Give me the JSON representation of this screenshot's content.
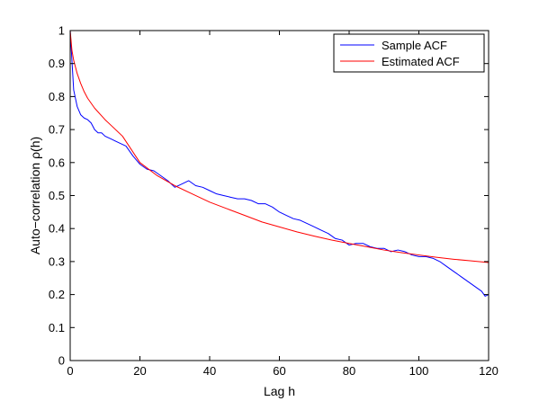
{
  "chart_data": {
    "type": "line",
    "title": "",
    "xlabel": "Lag h",
    "ylabel": "Auto−correlation ρ(h)",
    "xlim": [
      0,
      120
    ],
    "ylim": [
      0,
      1
    ],
    "xticks": [
      0,
      20,
      40,
      60,
      80,
      100,
      120
    ],
    "yticks": [
      0,
      0.1,
      0.2,
      0.3,
      0.4,
      0.5,
      0.6,
      0.7,
      0.8,
      0.9,
      1
    ],
    "xtick_labels": [
      "0",
      "20",
      "40",
      "60",
      "80",
      "100",
      "120"
    ],
    "ytick_labels": [
      "0",
      "0.1",
      "0.2",
      "0.3",
      "0.4",
      "0.5",
      "0.6",
      "0.7",
      "0.8",
      "0.9",
      "1"
    ],
    "grid": false,
    "legend_position": "top-right",
    "series": [
      {
        "name": "Sample ACF",
        "color": "#0000ff",
        "x": [
          0,
          1,
          2,
          3,
          4,
          5,
          6,
          7,
          8,
          9,
          10,
          12,
          14,
          16,
          18,
          20,
          22,
          24,
          26,
          28,
          30,
          32,
          34,
          36,
          38,
          40,
          42,
          44,
          46,
          48,
          50,
          52,
          54,
          56,
          58,
          60,
          62,
          64,
          66,
          68,
          70,
          72,
          74,
          76,
          78,
          80,
          82,
          84,
          86,
          88,
          90,
          92,
          94,
          96,
          98,
          100,
          102,
          104,
          106,
          108,
          110,
          112,
          114,
          116,
          118,
          119,
          120
        ],
        "y": [
          1.0,
          0.82,
          0.77,
          0.745,
          0.735,
          0.73,
          0.72,
          0.7,
          0.69,
          0.69,
          0.68,
          0.67,
          0.66,
          0.65,
          0.62,
          0.595,
          0.58,
          0.575,
          0.56,
          0.545,
          0.525,
          0.535,
          0.545,
          0.53,
          0.525,
          0.515,
          0.505,
          0.5,
          0.495,
          0.49,
          0.49,
          0.485,
          0.475,
          0.475,
          0.465,
          0.45,
          0.44,
          0.43,
          0.425,
          0.415,
          0.405,
          0.395,
          0.385,
          0.37,
          0.365,
          0.35,
          0.355,
          0.355,
          0.345,
          0.34,
          0.34,
          0.33,
          0.335,
          0.33,
          0.32,
          0.315,
          0.315,
          0.31,
          0.3,
          0.285,
          0.27,
          0.255,
          0.24,
          0.225,
          0.21,
          0.195,
          0.2
        ]
      },
      {
        "name": "Estimated ACF",
        "color": "#ff0000",
        "x": [
          0,
          0.5,
          1,
          2,
          3,
          4,
          5,
          7,
          10,
          12,
          15,
          20,
          25,
          30,
          35,
          40,
          45,
          50,
          55,
          60,
          65,
          70,
          75,
          80,
          85,
          90,
          95,
          100,
          105,
          110,
          115,
          120
        ],
        "y": [
          1.0,
          0.94,
          0.91,
          0.87,
          0.84,
          0.815,
          0.795,
          0.765,
          0.73,
          0.71,
          0.68,
          0.6,
          0.56,
          0.53,
          0.505,
          0.48,
          0.46,
          0.44,
          0.42,
          0.405,
          0.39,
          0.377,
          0.365,
          0.355,
          0.345,
          0.335,
          0.327,
          0.32,
          0.313,
          0.307,
          0.302,
          0.297
        ]
      }
    ]
  }
}
